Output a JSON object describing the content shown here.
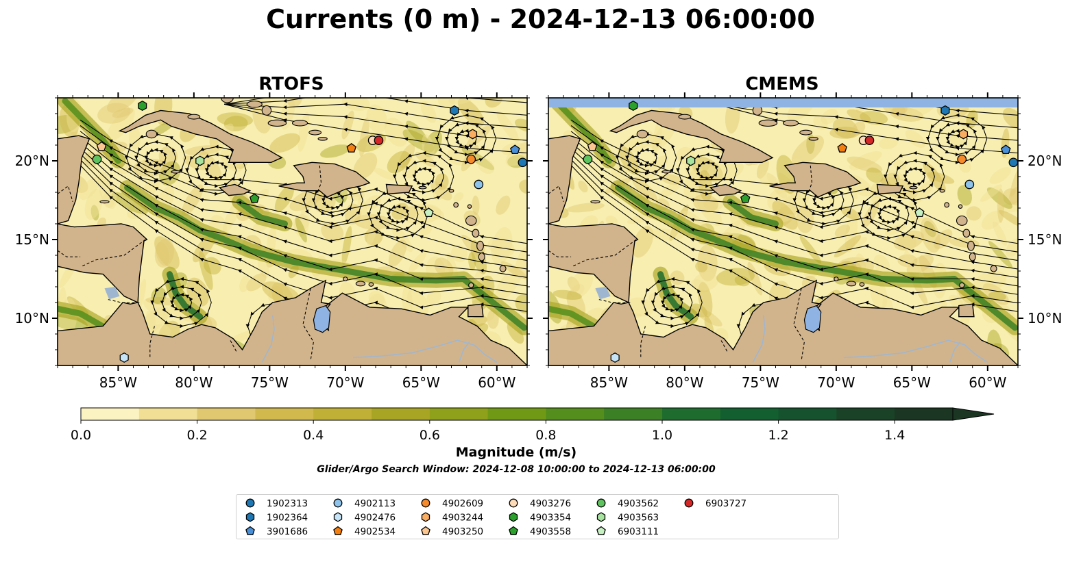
{
  "title": "Currents (0 m) - 2024-12-13 06:00:00",
  "panels": [
    {
      "title": "RTOFS",
      "has_top_band": false
    },
    {
      "title": "CMEMS",
      "has_top_band": true
    }
  ],
  "map": {
    "lon_range": [
      -89,
      -58
    ],
    "lat_range": [
      7,
      24
    ],
    "lon_ticks": [
      "85°W",
      "80°W",
      "75°W",
      "70°W",
      "65°W",
      "60°W"
    ],
    "lat_ticks": [
      "20°N",
      "15°N",
      "10°N"
    ],
    "land_color": "#d2b48c",
    "ocean_base_color": "#f7eeb0",
    "lake_color": "#8fb4e3"
  },
  "colorbar": {
    "label": "Magnitude (m/s)",
    "ticks": [
      "0.0",
      "0.2",
      "0.4",
      "0.6",
      "0.8",
      "1.0",
      "1.2",
      "1.4"
    ],
    "tick_values": [
      0,
      0.2,
      0.4,
      0.6,
      0.8,
      1.0,
      1.2,
      1.4
    ],
    "vmin": 0,
    "vmax": 1.5,
    "extend": "max",
    "colors": [
      "#fcf3c2",
      "#f0df94",
      "#e0c870",
      "#d1b94e",
      "#c0b035",
      "#a9a524",
      "#8fa01a",
      "#709a15",
      "#548e1c",
      "#3b8025",
      "#1f6d2e",
      "#135f30",
      "#16522d",
      "#1a4227",
      "#1b3622"
    ]
  },
  "search_window": "Glider/Argo Search Window: 2024-12-08 10:00:00 to 2024-12-13 06:00:00",
  "legend": [
    {
      "id": "1902313",
      "marker": "circle",
      "color": "#1f77b4"
    },
    {
      "id": "1902364",
      "marker": "hexagon",
      "color": "#1f77b4"
    },
    {
      "id": "3901686",
      "marker": "pentagon",
      "color": "#4a90d9"
    },
    {
      "id": "4902113",
      "marker": "circle",
      "color": "#8ec3ec"
    },
    {
      "id": "4902476",
      "marker": "hexagon",
      "color": "#c6e4f7"
    },
    {
      "id": "4902534",
      "marker": "pentagon",
      "color": "#f57f0e"
    },
    {
      "id": "4902609",
      "marker": "circle",
      "color": "#f58b2a"
    },
    {
      "id": "4903244",
      "marker": "hexagon",
      "color": "#f9ad62"
    },
    {
      "id": "4903250",
      "marker": "pentagon",
      "color": "#fbc690"
    },
    {
      "id": "4903276",
      "marker": "circle",
      "color": "#fddbb8"
    },
    {
      "id": "4903354",
      "marker": "hexagon",
      "color": "#2ca02c"
    },
    {
      "id": "4903558",
      "marker": "pentagon",
      "color": "#2ca02c"
    },
    {
      "id": "4903562",
      "marker": "circle",
      "color": "#5fc35f"
    },
    {
      "id": "4903563",
      "marker": "hexagon",
      "color": "#a8e4a0"
    },
    {
      "id": "6903111",
      "marker": "pentagon",
      "color": "#c7f0c2"
    },
    {
      "id": "6903727",
      "marker": "circle",
      "color": "#d62728"
    }
  ],
  "floats": [
    {
      "id": "1902313",
      "lon": -58.3,
      "lat": 19.9
    },
    {
      "id": "1902364",
      "lon": -62.8,
      "lat": 23.2
    },
    {
      "id": "3901686",
      "lon": -58.8,
      "lat": 20.7
    },
    {
      "id": "4902113",
      "lon": -61.2,
      "lat": 18.5
    },
    {
      "id": "4902476",
      "lon": -84.6,
      "lat": 7.5
    },
    {
      "id": "4902534",
      "lon": -69.6,
      "lat": 20.8
    },
    {
      "id": "4902609",
      "lon": -61.7,
      "lat": 20.1
    },
    {
      "id": "4903244",
      "lon": -61.6,
      "lat": 21.7
    },
    {
      "id": "4903250",
      "lon": -86.1,
      "lat": 20.9
    },
    {
      "id": "4903276",
      "lon": -68.2,
      "lat": 21.3
    },
    {
      "id": "4903354",
      "lon": -83.4,
      "lat": 23.5
    },
    {
      "id": "4903558",
      "lon": -76.0,
      "lat": 17.6
    },
    {
      "id": "4903562",
      "lon": -86.4,
      "lat": 20.1
    },
    {
      "id": "4903563",
      "lon": -79.6,
      "lat": 20.0
    },
    {
      "id": "6903111",
      "lon": -64.5,
      "lat": 16.7
    },
    {
      "id": "6903727",
      "lon": -67.8,
      "lat": 21.3
    }
  ]
}
